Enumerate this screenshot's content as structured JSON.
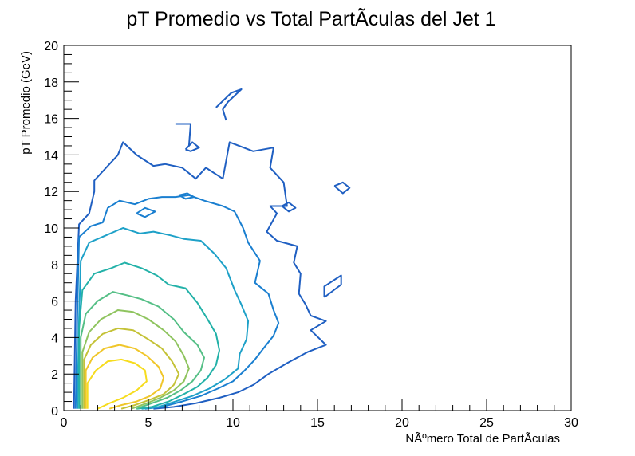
{
  "chart_data": {
    "type": "contour",
    "title": "pT Promedio vs Total PartÃ­culas del Jet 1",
    "xlabel": "NÃºmero Total de PartÃ­culas",
    "ylabel": "pT Promedio (GeV)",
    "xlim": [
      0,
      30
    ],
    "ylim": [
      0,
      20
    ],
    "x_ticks": [
      0,
      5,
      10,
      15,
      20,
      25,
      30
    ],
    "y_ticks": [
      0,
      2,
      4,
      6,
      8,
      10,
      12,
      14,
      16,
      18,
      20
    ],
    "x_tick_labels": [
      "0",
      "5",
      "10",
      "15",
      "20",
      "25",
      "30"
    ],
    "y_tick_labels": [
      "0",
      "2",
      "4",
      "6",
      "8",
      "10",
      "12",
      "14",
      "16",
      "18",
      "20"
    ],
    "grid": false,
    "legend": "none",
    "levels": [
      {
        "level": 1,
        "color": "#1f5fc2",
        "paths": [
          [
            [
              0.6,
              0.1
            ],
            [
              0.7,
              6
            ],
            [
              0.9,
              10.2
            ],
            [
              1.5,
              10.8
            ],
            [
              1.8,
              12
            ],
            [
              1.8,
              12.6
            ],
            [
              2.5,
              13.3
            ],
            [
              3.2,
              14
            ],
            [
              3.5,
              14.7
            ],
            [
              4.3,
              14
            ],
            [
              5.3,
              13.4
            ],
            [
              6,
              13.5
            ],
            [
              7,
              13.3
            ],
            [
              7.8,
              12.7
            ],
            [
              8.4,
              13.3
            ],
            [
              9.4,
              12.7
            ],
            [
              9.8,
              14.7
            ],
            [
              11.2,
              14.2
            ],
            [
              12.4,
              14.4
            ],
            [
              12.2,
              13.3
            ],
            [
              13,
              12.5
            ],
            [
              13.2,
              11.2
            ],
            [
              12.2,
              11.2
            ],
            [
              12.6,
              10.8
            ],
            [
              12,
              9.8
            ],
            [
              12.6,
              9.3
            ],
            [
              13.8,
              9
            ],
            [
              13.6,
              8.1
            ],
            [
              14,
              7.5
            ],
            [
              13.9,
              6.4
            ],
            [
              14.3,
              5.8
            ],
            [
              14.6,
              5.2
            ],
            [
              15.5,
              4.9
            ],
            [
              14.6,
              4.4
            ],
            [
              15.5,
              3.6
            ],
            [
              14.4,
              3.2
            ],
            [
              13.2,
              2.6
            ],
            [
              12.1,
              2
            ],
            [
              11.2,
              1.4
            ],
            [
              10.3,
              1
            ],
            [
              9.2,
              0.7
            ],
            [
              7.8,
              0.4
            ],
            [
              6.5,
              0.2
            ],
            [
              5.3,
              0.1
            ]
          ],
          [
            [
              6.6,
              15.7
            ],
            [
              7.5,
              15.7
            ],
            [
              7.4,
              14.5
            ]
          ],
          [
            [
              9,
              16.6
            ],
            [
              9.9,
              17.4
            ],
            [
              10.5,
              17.6
            ],
            [
              9.7,
              16.9
            ],
            [
              9.4,
              16.5
            ],
            [
              9.6,
              15.9
            ]
          ],
          [
            [
              7.2,
              14.3
            ],
            [
              7.6,
              14.7
            ],
            [
              8,
              14.4
            ],
            [
              7.5,
              14.2
            ],
            [
              7.2,
              14.3
            ]
          ],
          [
            [
              16,
              12.3
            ],
            [
              16.5,
              12.5
            ],
            [
              16.9,
              12.2
            ],
            [
              16.5,
              11.9
            ],
            [
              16,
              12.3
            ]
          ],
          [
            [
              12.9,
              11.2
            ],
            [
              13.3,
              11.4
            ],
            [
              13.7,
              11.1
            ],
            [
              13.3,
              10.9
            ],
            [
              12.9,
              11.2
            ]
          ],
          [
            [
              15.4,
              6.2
            ],
            [
              15.4,
              6.8
            ],
            [
              16.4,
              7.4
            ],
            [
              16.4,
              6.9
            ],
            [
              15.4,
              6.2
            ]
          ]
        ]
      },
      {
        "level": 2,
        "color": "#1a7fd0",
        "paths": [
          [
            [
              0.7,
              0.1
            ],
            [
              0.8,
              5.5
            ],
            [
              0.9,
              9.5
            ],
            [
              1.6,
              10.1
            ],
            [
              2.3,
              10.3
            ],
            [
              2.6,
              11.1
            ],
            [
              3.3,
              11.5
            ],
            [
              4.2,
              11.3
            ],
            [
              5,
              11.6
            ],
            [
              5.8,
              11.7
            ],
            [
              6.6,
              11.7
            ],
            [
              7.4,
              11.8
            ],
            [
              8.3,
              11.5
            ],
            [
              9.4,
              11.2
            ],
            [
              10.1,
              10.9
            ],
            [
              10.6,
              10
            ],
            [
              10.9,
              9.2
            ],
            [
              11.6,
              8.2
            ],
            [
              11.3,
              7
            ],
            [
              12.1,
              6.4
            ],
            [
              12.4,
              5.5
            ],
            [
              12.7,
              4.8
            ],
            [
              12.4,
              4.1
            ],
            [
              11.8,
              3.4
            ],
            [
              11.3,
              2.8
            ],
            [
              10.7,
              2.2
            ],
            [
              10,
              1.6
            ],
            [
              9.1,
              1.2
            ],
            [
              8.1,
              0.8
            ],
            [
              7,
              0.5
            ],
            [
              5.8,
              0.2
            ],
            [
              4.8,
              0.1
            ]
          ],
          [
            [
              4.3,
              10.8
            ],
            [
              4.8,
              11.1
            ],
            [
              5.4,
              10.9
            ],
            [
              4.8,
              10.6
            ],
            [
              4.3,
              10.8
            ]
          ],
          [
            [
              6.8,
              11.8
            ],
            [
              7.3,
              11.9
            ],
            [
              7.7,
              11.7
            ],
            [
              7.2,
              11.6
            ],
            [
              6.8,
              11.8
            ]
          ]
        ]
      },
      {
        "level": 3,
        "color": "#1ea1c8",
        "paths": [
          [
            [
              0.8,
              0.1
            ],
            [
              0.9,
              5
            ],
            [
              1,
              8.2
            ],
            [
              1.5,
              9.2
            ],
            [
              2.5,
              9.6
            ],
            [
              3.5,
              10
            ],
            [
              4.5,
              9.7
            ],
            [
              5.3,
              9.8
            ],
            [
              6.3,
              9.6
            ],
            [
              7.1,
              9.4
            ],
            [
              8.1,
              9.3
            ],
            [
              8.9,
              8.6
            ],
            [
              9.6,
              7.8
            ],
            [
              10.1,
              6.6
            ],
            [
              10.5,
              5.8
            ],
            [
              10.9,
              4.9
            ],
            [
              10.8,
              3.9
            ],
            [
              10.4,
              3.1
            ],
            [
              10.3,
              2.3
            ],
            [
              9.5,
              1.7
            ],
            [
              8.6,
              1.2
            ],
            [
              7.6,
              0.8
            ],
            [
              6.6,
              0.5
            ],
            [
              5.6,
              0.2
            ],
            [
              4.6,
              0.1
            ]
          ]
        ]
      },
      {
        "level": 4,
        "color": "#22b1a8",
        "paths": [
          [
            [
              0.9,
              0.1
            ],
            [
              0.9,
              4.5
            ],
            [
              1.1,
              6.6
            ],
            [
              1.8,
              7.5
            ],
            [
              2.8,
              7.8
            ],
            [
              3.6,
              8.1
            ],
            [
              4.6,
              7.8
            ],
            [
              5.5,
              7.4
            ],
            [
              6.2,
              6.9
            ],
            [
              7.2,
              6.7
            ],
            [
              7.9,
              5.9
            ],
            [
              8.5,
              5
            ],
            [
              9,
              4.2
            ],
            [
              9.2,
              3.3
            ],
            [
              9,
              2.5
            ],
            [
              8.5,
              1.8
            ],
            [
              7.9,
              1.3
            ],
            [
              7.1,
              0.9
            ],
            [
              6.2,
              0.5
            ],
            [
              5.2,
              0.2
            ],
            [
              4.3,
              0.1
            ]
          ]
        ]
      },
      {
        "level": 5,
        "color": "#55bf86",
        "paths": [
          [
            [
              1,
              0.1
            ],
            [
              1,
              4
            ],
            [
              1.3,
              5.3
            ],
            [
              2,
              6
            ],
            [
              2.9,
              6.5
            ],
            [
              3.8,
              6.3
            ],
            [
              4.6,
              6.1
            ],
            [
              5.6,
              5.7
            ],
            [
              6.5,
              5
            ],
            [
              7.1,
              4.3
            ],
            [
              7.9,
              3.6
            ],
            [
              8.3,
              2.9
            ],
            [
              8.1,
              2.2
            ],
            [
              7.6,
              1.6
            ],
            [
              6.9,
              1.1
            ],
            [
              6.1,
              0.7
            ],
            [
              5.2,
              0.4
            ],
            [
              4.3,
              0.1
            ]
          ]
        ]
      },
      {
        "level": 6,
        "color": "#8fc45f",
        "paths": [
          [
            [
              1.1,
              0.1
            ],
            [
              1.1,
              3.2
            ],
            [
              1.5,
              4.3
            ],
            [
              2.2,
              5
            ],
            [
              3.2,
              5.5
            ],
            [
              4.1,
              5.4
            ],
            [
              5,
              5
            ],
            [
              5.9,
              4.4
            ],
            [
              6.6,
              3.8
            ],
            [
              7.1,
              3
            ],
            [
              7.4,
              2.3
            ],
            [
              7.1,
              1.6
            ],
            [
              6.5,
              1.1
            ],
            [
              5.7,
              0.7
            ],
            [
              4.9,
              0.4
            ],
            [
              4,
              0.1
            ]
          ]
        ]
      },
      {
        "level": 7,
        "color": "#c4c237",
        "paths": [
          [
            [
              1.2,
              0.1
            ],
            [
              1.2,
              2.8
            ],
            [
              1.6,
              3.6
            ],
            [
              2.3,
              4.2
            ],
            [
              3.2,
              4.5
            ],
            [
              4.1,
              4.4
            ],
            [
              5,
              3.9
            ],
            [
              5.8,
              3.4
            ],
            [
              6.4,
              2.7
            ],
            [
              6.8,
              2
            ],
            [
              6.5,
              1.4
            ],
            [
              5.9,
              0.9
            ],
            [
              5.1,
              0.6
            ],
            [
              4.2,
              0.3
            ],
            [
              3.4,
              0.1
            ]
          ]
        ]
      },
      {
        "level": 8,
        "color": "#f0c62a",
        "paths": [
          [
            [
              1.3,
              0.1
            ],
            [
              1.3,
              2.2
            ],
            [
              1.7,
              2.9
            ],
            [
              2.4,
              3.4
            ],
            [
              3.3,
              3.6
            ],
            [
              4.2,
              3.4
            ],
            [
              4.9,
              3
            ],
            [
              5.6,
              2.4
            ],
            [
              5.9,
              1.8
            ],
            [
              5.7,
              1.2
            ],
            [
              5.1,
              0.8
            ],
            [
              4.3,
              0.5
            ],
            [
              3.4,
              0.3
            ],
            [
              2.7,
              0.1
            ]
          ]
        ]
      },
      {
        "level": 9,
        "color": "#f6dc1e",
        "paths": [
          [
            [
              1.4,
              0.1
            ],
            [
              1.4,
              1.5
            ],
            [
              1.9,
              2.2
            ],
            [
              2.6,
              2.7
            ],
            [
              3.4,
              2.8
            ],
            [
              4.2,
              2.6
            ],
            [
              4.8,
              2.2
            ],
            [
              4.9,
              1.6
            ],
            [
              4.3,
              1.1
            ],
            [
              3.5,
              0.7
            ],
            [
              2.7,
              0.4
            ],
            [
              2,
              0.1
            ]
          ]
        ]
      }
    ]
  }
}
